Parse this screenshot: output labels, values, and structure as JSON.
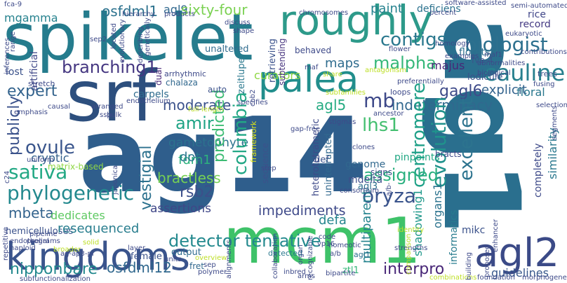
{
  "cloud": {
    "words": [
      {
        "text": "ag14",
        "color": "#2f5e8c"
      },
      {
        "text": "ag1",
        "color": "#2a6f8e"
      },
      {
        "text": "spikelet",
        "color": "#257c8d"
      },
      {
        "text": "srf",
        "color": "#2d4f7e"
      },
      {
        "text": "mcm1",
        "color": "#3ec269"
      },
      {
        "text": "kingdoms",
        "color": "#3a548c"
      },
      {
        "text": "roughly",
        "color": "#2d9a8a"
      },
      {
        "text": "palea",
        "color": "#218e8c"
      },
      {
        "text": "agl2",
        "color": "#3b4a87"
      },
      {
        "text": "mgamma",
        "color": "#26828e"
      },
      {
        "text": "osfdml1",
        "color": "#2c728e"
      },
      {
        "text": "agl9",
        "color": "#31688e"
      },
      {
        "text": "sixty-four",
        "color": "#7ad151"
      },
      {
        "text": "paint",
        "color": "#26828e"
      },
      {
        "text": "deficiens",
        "color": "#2c728e"
      },
      {
        "text": "contigs",
        "color": "#2a788e"
      },
      {
        "text": "biologist",
        "color": "#2d708e"
      },
      {
        "text": "malpha",
        "color": "#35b779"
      },
      {
        "text": "majus",
        "color": "#482878"
      },
      {
        "text": "cauline",
        "color": "#27808e"
      },
      {
        "text": "branching1",
        "color": "#453781"
      },
      {
        "text": "curators",
        "color": "#8fd744"
      },
      {
        "text": "maps",
        "color": "#2f6c8e"
      },
      {
        "text": "gagl6",
        "color": "#3e4a89"
      },
      {
        "text": "expert",
        "color": "#33638d"
      },
      {
        "text": "moderate",
        "color": "#3b528b"
      },
      {
        "text": "mb",
        "color": "#3e4989"
      },
      {
        "text": "indeterminacy",
        "color": "#31688e"
      },
      {
        "text": "agl5",
        "color": "#25ab82"
      },
      {
        "text": "amir",
        "color": "#20a486"
      },
      {
        "text": "gametophyte",
        "color": "#2c728e"
      },
      {
        "text": "publicly",
        "color": "#3b528b"
      },
      {
        "text": "columbia",
        "color": "#22a785"
      },
      {
        "text": "predicted",
        "color": "#3dbc74"
      },
      {
        "text": "fdm1",
        "color": "#2db27d"
      },
      {
        "text": "bractless",
        "color": "#75d054"
      },
      {
        "text": "lhs1",
        "color": "#44bf70"
      },
      {
        "text": "ovule",
        "color": "#39558c"
      },
      {
        "text": "cryptic",
        "color": "#34618d"
      },
      {
        "text": "sativa",
        "color": "#22a884"
      },
      {
        "text": "vestigial",
        "color": "#2c718e"
      },
      {
        "text": "rsb2",
        "color": "#3c4f8a"
      },
      {
        "text": "evolution",
        "color": "#20928c"
      },
      {
        "text": "centromere",
        "color": "#1fa088"
      },
      {
        "text": "excellent",
        "color": "#2c738e"
      },
      {
        "text": "assigned",
        "color": "#2ab07f"
      },
      {
        "text": "phylogenetic",
        "color": "#23898e"
      },
      {
        "text": "dot",
        "color": "#2a778e"
      },
      {
        "text": "assertions",
        "color": "#3f4788"
      },
      {
        "text": "mbeta",
        "color": "#33638d"
      },
      {
        "text": "dedicates",
        "color": "#5ec962"
      },
      {
        "text": "hemicelluloses",
        "color": "#3b528b"
      },
      {
        "text": "resequenced",
        "color": "#287d8e"
      },
      {
        "text": "impediments",
        "color": "#3e4989"
      },
      {
        "text": "defa",
        "color": "#25858e"
      },
      {
        "text": "oryza",
        "color": "#3a548c"
      },
      {
        "text": "multiparent",
        "color": "#25838e"
      },
      {
        "text": "detector tentative",
        "color": "#23898e"
      },
      {
        "text": "nipponbare",
        "color": "#23898e"
      },
      {
        "text": "osfdml12",
        "color": "#31688e"
      },
      {
        "text": "interpro",
        "color": "#482677"
      },
      {
        "text": "mikc",
        "color": "#3b528b"
      },
      {
        "text": "organs1",
        "color": "#2c738e"
      },
      {
        "text": "shadowing1",
        "color": "#1f988b"
      },
      {
        "text": "informatics",
        "color": "#287c8e"
      },
      {
        "text": "guidelines",
        "color": "#38588c"
      },
      {
        "text": "similarity",
        "color": "#2a788e"
      },
      {
        "text": "completely",
        "color": "#3e4a89"
      },
      {
        "text": "floral",
        "color": "#2a788e"
      },
      {
        "text": "explicit",
        "color": "#33638d"
      },
      {
        "text": "florets",
        "color": "#2d708e"
      },
      {
        "text": "record",
        "color": "#443983"
      },
      {
        "text": "rice",
        "color": "#404688"
      },
      {
        "text": "mdelta",
        "color": "#3d4e8a"
      },
      {
        "text": "agl3",
        "color": "#2d708e"
      },
      {
        "text": "pinpoints",
        "color": "#22a884"
      },
      {
        "text": "genome",
        "color": "#31688e"
      },
      {
        "text": "signs",
        "color": "#3e4c8a"
      },
      {
        "text": "female",
        "color": "#3b528b"
      },
      {
        "text": "output",
        "color": "#2f6c8e"
      },
      {
        "text": "detected",
        "color": "#2a788e"
      },
      {
        "text": "fret",
        "color": "#31688e"
      },
      {
        "text": "ztl1",
        "color": "#35b779"
      },
      {
        "text": "agl1",
        "color": "#2d708e"
      },
      {
        "text": "matrix-based",
        "color": "#8fd744"
      },
      {
        "text": "unaltered",
        "color": "#2f6c8e"
      },
      {
        "text": "behaved",
        "color": "#3e4a89"
      },
      {
        "text": "retrieving",
        "color": "#3b528b"
      },
      {
        "text": "subtending",
        "color": "#46337e"
      },
      {
        "text": "artificial",
        "color": "#3f4788"
      },
      {
        "text": "lost",
        "color": "#3b528b"
      },
      {
        "text": "dual",
        "color": "#482878"
      },
      {
        "text": "carpels",
        "color": "#2f6c8e"
      },
      {
        "text": "chalaza",
        "color": "#31688e"
      },
      {
        "text": "auto",
        "color": "#3b528b"
      },
      {
        "text": "arrhythmic",
        "color": "#3e4a89"
      },
      {
        "text": "zeitlupe",
        "color": "#2a788e"
      },
      {
        "text": "framework",
        "color": "#dde318"
      },
      {
        "text": "heterotetrameric",
        "color": "#3e4a89"
      },
      {
        "text": "uninterrupted",
        "color": "#31688e"
      },
      {
        "text": "sequence",
        "color": "#3b528b"
      },
      {
        "text": "def",
        "color": "#3b528b"
      },
      {
        "text": "lodicule",
        "color": "#3b528b"
      },
      {
        "text": "fve-4",
        "color": "#3b528b"
      },
      {
        "text": "loops",
        "color": "#3e4a89"
      },
      {
        "text": "bracts",
        "color": "#3e4a89"
      },
      {
        "text": "trees",
        "color": "#3b528b"
      },
      {
        "text": "stretch",
        "color": "#3e4a89"
      },
      {
        "text": "uniform",
        "color": "#3e4a89"
      },
      {
        "text": "repetitive",
        "color": "#3e4a89"
      },
      {
        "text": "endothelial",
        "color": "#3e4a89"
      },
      {
        "text": "arranged",
        "color": "#3e4a89"
      },
      {
        "text": "japonica",
        "color": "#3e4a89"
      },
      {
        "text": "solid",
        "color": "#bddf26"
      },
      {
        "text": "broader",
        "color": "#bddf26"
      },
      {
        "text": "haploid",
        "color": "#3e4a89"
      },
      {
        "text": "programs",
        "color": "#3e4a89"
      },
      {
        "text": "pipeline",
        "color": "#3e4a89"
      },
      {
        "text": "subfunctionalization",
        "color": "#3e4a89"
      },
      {
        "text": "ag-ap3-pi",
        "color": "#3e4a89"
      },
      {
        "text": "layer",
        "color": "#3e4a89"
      },
      {
        "text": "units",
        "color": "#3e4a89"
      },
      {
        "text": "overview",
        "color": "#bddf26"
      },
      {
        "text": "polymer",
        "color": "#3e4a89"
      },
      {
        "text": "sep",
        "color": "#3e4a89"
      },
      {
        "text": "alignments",
        "color": "#3e4a89"
      },
      {
        "text": "collaboration",
        "color": "#3e4a89"
      },
      {
        "text": "inbred",
        "color": "#3e4a89"
      },
      {
        "text": "arms",
        "color": "#3e4a89"
      },
      {
        "text": "organ",
        "color": "#3e4a89"
      },
      {
        "text": "recognizable",
        "color": "#3e4a89"
      },
      {
        "text": "bipartite",
        "color": "#3e4a89"
      },
      {
        "text": "combinations",
        "color": "#bddf26"
      },
      {
        "text": "foundation",
        "color": "#3e4a89"
      },
      {
        "text": "morphogenesis",
        "color": "#3e4a89"
      },
      {
        "text": "strengths",
        "color": "#3e4a89"
      },
      {
        "text": "identity",
        "color": "#bddf26"
      },
      {
        "text": "enhancer",
        "color": "#3e4a89"
      },
      {
        "text": "building",
        "color": "#3e4a89"
      },
      {
        "text": "proposed",
        "color": "#3e4a89"
      },
      {
        "text": "comparison",
        "color": "#bddf26"
      },
      {
        "text": "homeotic",
        "color": "#3e4a89"
      },
      {
        "text": "code",
        "color": "#3e4a89"
      },
      {
        "text": "vp16",
        "color": "#3e4a89"
      },
      {
        "text": "step",
        "color": "#3e4a89"
      },
      {
        "text": "clones",
        "color": "#3e4a89"
      },
      {
        "text": "stigmas",
        "color": "#3e4a89"
      },
      {
        "text": "consortium",
        "color": "#3e4a89"
      },
      {
        "text": "gap-free",
        "color": "#3e4a89"
      },
      {
        "text": "ancestor",
        "color": "#3e4a89"
      },
      {
        "text": "subfamilies",
        "color": "#bddf26"
      },
      {
        "text": "full-length",
        "color": "#bddf26"
      },
      {
        "text": "specifies",
        "color": "#3e4a89"
      },
      {
        "text": "endothelium",
        "color": "#3e4a89"
      },
      {
        "text": "emphasis",
        "color": "#3e4a89"
      },
      {
        "text": "causal",
        "color": "#3e4a89"
      },
      {
        "text": "preferentially",
        "color": "#3e4a89"
      },
      {
        "text": "biological",
        "color": "#3e4a89"
      },
      {
        "text": "abnormalities",
        "color": "#3e4a89"
      },
      {
        "text": "antagonism",
        "color": "#bddf26"
      },
      {
        "text": "homology",
        "color": "#3e4a89"
      },
      {
        "text": "eukaryotic",
        "color": "#3e4a89"
      },
      {
        "text": "semi-automated",
        "color": "#3e4a89"
      },
      {
        "text": "software-assisted",
        "color": "#3e4a89"
      },
      {
        "text": "percent",
        "color": "#3e4a89"
      },
      {
        "text": "chromosomes",
        "color": "#3e4a89"
      },
      {
        "text": "hierarchy",
        "color": "#3e4a89"
      },
      {
        "text": "products",
        "color": "#3e4a89"
      },
      {
        "text": "located",
        "color": "#3e4a89"
      },
      {
        "text": "inferences",
        "color": "#3e4a89"
      },
      {
        "text": "range",
        "color": "#3e4a89"
      },
      {
        "text": "fca-9",
        "color": "#3e4a89"
      },
      {
        "text": "sep2",
        "color": "#3e4a89"
      },
      {
        "text": "evolutionary",
        "color": "#3e4a89"
      },
      {
        "text": "describing",
        "color": "#3e4a89"
      },
      {
        "text": "genetically",
        "color": "#3e4a89"
      },
      {
        "text": "shape",
        "color": "#3e4a89"
      },
      {
        "text": "discuss",
        "color": "#3e4a89"
      },
      {
        "text": "flower",
        "color": "#3e4a89"
      },
      {
        "text": "maf",
        "color": "#3e4a89"
      },
      {
        "text": "share",
        "color": "#bddf26"
      },
      {
        "text": "examples",
        "color": "#3e4a89"
      },
      {
        "text": "fusing",
        "color": "#3e4a89"
      },
      {
        "text": "selection",
        "color": "#3e4a89"
      },
      {
        "text": "segments",
        "color": "#3e4a89"
      },
      {
        "text": "trees2",
        "color": "#3e4a89"
      },
      {
        "text": "a/b",
        "color": "#3e4a89"
      },
      {
        "text": "a/b-",
        "color": "#3e4a89"
      },
      {
        "text": "ssp",
        "color": "#3e4a89"
      },
      {
        "text": "bulk",
        "color": "#3e4a89"
      },
      {
        "text": "c24",
        "color": "#3e4a89"
      },
      {
        "text": "cob2",
        "color": "#3e4a89"
      },
      {
        "text": "maf1",
        "color": "#3e4a89"
      },
      {
        "text": "contributions",
        "color": "#3e4a89"
      }
    ]
  }
}
